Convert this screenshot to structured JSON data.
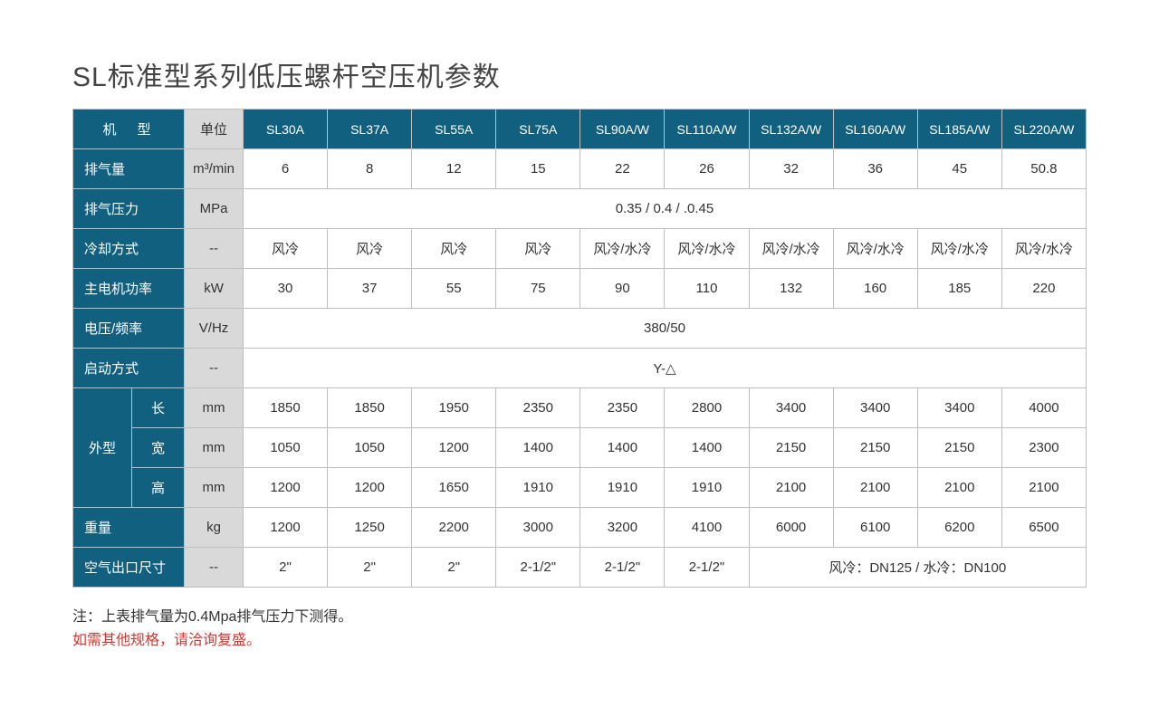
{
  "title": "SL标准型系列低压螺杆空压机参数",
  "headers": {
    "model_label": "机　型",
    "unit_label": "单位",
    "models": [
      "SL30A",
      "SL37A",
      "SL55A",
      "SL75A",
      "SL90A/W",
      "SL110A/W",
      "SL132A/W",
      "SL160A/W",
      "SL185A/W",
      "SL220A/W"
    ]
  },
  "rows": {
    "airflow": {
      "label": "排气量",
      "unit": "m³/min",
      "values": [
        "6",
        "8",
        "12",
        "15",
        "22",
        "26",
        "32",
        "36",
        "45",
        "50.8"
      ]
    },
    "pressure": {
      "label": "排气压力",
      "unit": "MPa",
      "merged": "0.35 / 0.4 / .0.45"
    },
    "cooling": {
      "label": "冷却方式",
      "unit": "--",
      "values": [
        "风冷",
        "风冷",
        "风冷",
        "风冷",
        "风冷/水冷",
        "风冷/水冷",
        "风冷/水冷",
        "风冷/水冷",
        "风冷/水冷",
        "风冷/水冷"
      ]
    },
    "power": {
      "label": "主电机功率",
      "unit": "kW",
      "values": [
        "30",
        "37",
        "55",
        "75",
        "90",
        "110",
        "132",
        "160",
        "185",
        "220"
      ]
    },
    "voltage": {
      "label": "电压/频率",
      "unit": "V/Hz",
      "merged": "380/50"
    },
    "start": {
      "label": "启动方式",
      "unit": "--",
      "merged": "Y-△"
    },
    "dims_group": "外型",
    "length": {
      "label": "长",
      "unit": "mm",
      "values": [
        "1850",
        "1850",
        "1950",
        "2350",
        "2350",
        "2800",
        "3400",
        "3400",
        "3400",
        "4000"
      ]
    },
    "width": {
      "label": "宽",
      "unit": "mm",
      "values": [
        "1050",
        "1050",
        "1200",
        "1400",
        "1400",
        "1400",
        "2150",
        "2150",
        "2150",
        "2300"
      ]
    },
    "height": {
      "label": "高",
      "unit": "mm",
      "values": [
        "1200",
        "1200",
        "1650",
        "1910",
        "1910",
        "1910",
        "2100",
        "2100",
        "2100",
        "2100"
      ]
    },
    "weight": {
      "label": "重量",
      "unit": "kg",
      "values": [
        "1200",
        "1250",
        "2200",
        "3000",
        "3200",
        "4100",
        "6000",
        "6100",
        "6200",
        "6500"
      ]
    },
    "outlet": {
      "label": "空气出口尺寸",
      "unit": "--",
      "first6": [
        "2\"",
        "2\"",
        "2\"",
        "2-1/2\"",
        "2-1/2\"",
        "2-1/2\""
      ],
      "last4_merged": "风冷：DN125 / 水冷：DN100"
    }
  },
  "footnote1": "注：上表排气量为0.4Mpa排气压力下测得。",
  "footnote2": "如需其他规格，请洽询复盛。",
  "colors": {
    "header_bg": "#126080",
    "unit_bg": "#d9d9d9",
    "border": "#bfbfbf",
    "accent_red": "#d9352d"
  }
}
